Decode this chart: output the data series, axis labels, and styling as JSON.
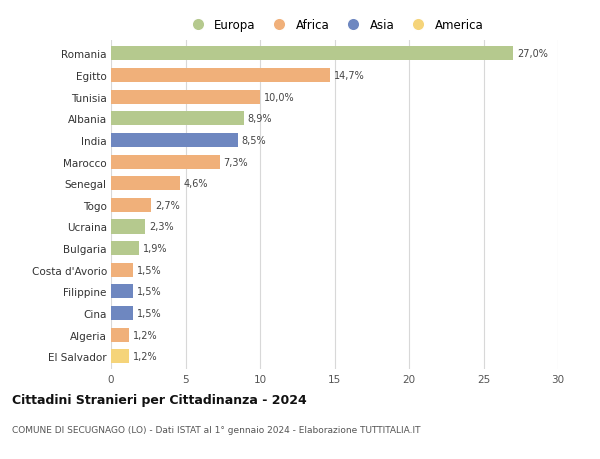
{
  "countries": [
    "Romania",
    "Egitto",
    "Tunisia",
    "Albania",
    "India",
    "Marocco",
    "Senegal",
    "Togo",
    "Ucraina",
    "Bulgaria",
    "Costa d'Avorio",
    "Filippine",
    "Cina",
    "Algeria",
    "El Salvador"
  ],
  "values": [
    27.0,
    14.7,
    10.0,
    8.9,
    8.5,
    7.3,
    4.6,
    2.7,
    2.3,
    1.9,
    1.5,
    1.5,
    1.5,
    1.2,
    1.2
  ],
  "labels": [
    "27,0%",
    "14,7%",
    "10,0%",
    "8,9%",
    "8,5%",
    "7,3%",
    "4,6%",
    "2,7%",
    "2,3%",
    "1,9%",
    "1,5%",
    "1,5%",
    "1,5%",
    "1,2%",
    "1,2%"
  ],
  "colors": [
    "#b5c98e",
    "#f0b07a",
    "#f0b07a",
    "#b5c98e",
    "#6e87c0",
    "#f0b07a",
    "#f0b07a",
    "#f0b07a",
    "#b5c98e",
    "#b5c98e",
    "#f0b07a",
    "#6e87c0",
    "#6e87c0",
    "#f0b07a",
    "#f5d47a"
  ],
  "legend_labels": [
    "Europa",
    "Africa",
    "Asia",
    "America"
  ],
  "legend_colors": [
    "#b5c98e",
    "#f0b07a",
    "#6e87c0",
    "#f5d47a"
  ],
  "title1": "Cittadini Stranieri per Cittadinanza - 2024",
  "title2": "COMUNE DI SECUGNAGO (LO) - Dati ISTAT al 1° gennaio 2024 - Elaborazione TUTTITALIA.IT",
  "xlim": [
    0,
    30
  ],
  "xticks": [
    0,
    5,
    10,
    15,
    20,
    25,
    30
  ],
  "bg_color": "#ffffff",
  "grid_color": "#d8d8d8",
  "bar_height": 0.65
}
